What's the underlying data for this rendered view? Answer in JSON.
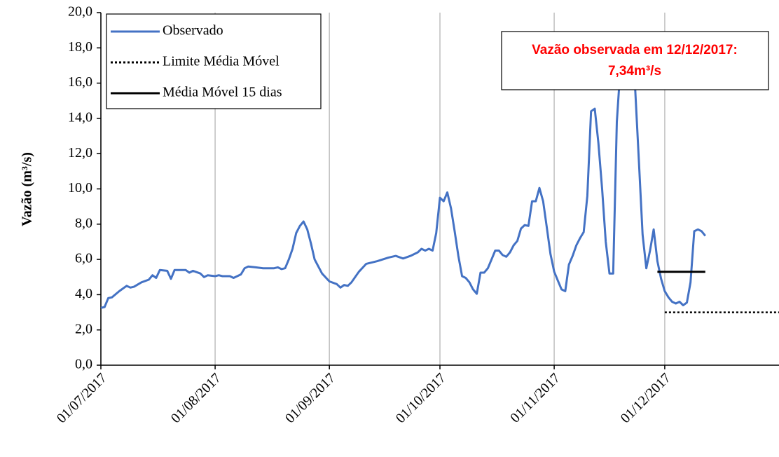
{
  "chart_data": {
    "type": "line",
    "y_label": "Vazão (m³/s)",
    "xlim": [
      "01/07/2017",
      "01/01/2018"
    ],
    "xticks": [
      "01/07/2017",
      "01/08/2017",
      "01/09/2017",
      "01/10/2017",
      "01/11/2017",
      "01/12/2017"
    ],
    "ylim": [
      0,
      20
    ],
    "yticks": [
      {
        "value": 0,
        "label": "0,0"
      },
      {
        "value": 2,
        "label": "2,0"
      },
      {
        "value": 4,
        "label": "4,0"
      },
      {
        "value": 6,
        "label": "6,0"
      },
      {
        "value": 8,
        "label": "8,0"
      },
      {
        "value": 10,
        "label": "10,0"
      },
      {
        "value": 12,
        "label": "12,0"
      },
      {
        "value": 14,
        "label": "14,0"
      },
      {
        "value": 16,
        "label": "16,0"
      },
      {
        "value": 18,
        "label": "18,0"
      },
      {
        "value": 20,
        "label": "20,0"
      }
    ],
    "grid": "x",
    "legend": "upper left",
    "annotation": {
      "lines": [
        "Vazão observada em 12/12/2017:",
        "7,34m³/s"
      ],
      "color": "#ff0000"
    },
    "series": [
      {
        "name": "Observado",
        "color": "#4472c4",
        "style": "solid",
        "x": [
          "01/07/2017",
          "02/07/2017",
          "03/07/2017",
          "04/07/2017",
          "06/07/2017",
          "08/07/2017",
          "09/07/2017",
          "10/07/2017",
          "12/07/2017",
          "14/07/2017",
          "15/07/2017",
          "16/07/2017",
          "17/07/2017",
          "19/07/2017",
          "20/07/2017",
          "21/07/2017",
          "24/07/2017",
          "25/07/2017",
          "26/07/2017",
          "28/07/2017",
          "29/07/2017",
          "30/07/2017",
          "01/08/2017",
          "02/08/2017",
          "03/08/2017",
          "05/08/2017",
          "06/08/2017",
          "08/08/2017",
          "09/08/2017",
          "10/08/2017",
          "12/08/2017",
          "14/08/2017",
          "17/08/2017",
          "18/08/2017",
          "19/08/2017",
          "20/08/2017",
          "21/08/2017",
          "22/08/2017",
          "23/08/2017",
          "24/08/2017",
          "25/08/2017",
          "26/08/2017",
          "27/08/2017",
          "28/08/2017",
          "30/08/2017",
          "01/09/2017",
          "03/09/2017",
          "04/09/2017",
          "05/09/2017",
          "06/09/2017",
          "07/09/2017",
          "09/09/2017",
          "11/09/2017",
          "14/09/2017",
          "17/09/2017",
          "19/09/2017",
          "21/09/2017",
          "23/09/2017",
          "25/09/2017",
          "26/09/2017",
          "27/09/2017",
          "28/09/2017",
          "29/09/2017",
          "30/09/2017",
          "01/10/2017",
          "02/10/2017",
          "03/10/2017",
          "04/10/2017",
          "05/10/2017",
          "06/10/2017",
          "07/10/2017",
          "08/10/2017",
          "09/10/2017",
          "10/10/2017",
          "11/10/2017",
          "12/10/2017",
          "13/10/2017",
          "14/10/2017",
          "15/10/2017",
          "16/10/2017",
          "17/10/2017",
          "18/10/2017",
          "19/10/2017",
          "20/10/2017",
          "21/10/2017",
          "22/10/2017",
          "23/10/2017",
          "24/10/2017",
          "25/10/2017",
          "26/10/2017",
          "27/10/2017",
          "28/10/2017",
          "29/10/2017",
          "30/10/2017",
          "31/10/2017",
          "01/11/2017",
          "02/11/2017",
          "03/11/2017",
          "04/11/2017",
          "05/11/2017",
          "06/11/2017",
          "07/11/2017",
          "08/11/2017",
          "09/11/2017",
          "10/11/2017",
          "11/11/2017",
          "12/11/2017",
          "13/11/2017",
          "14/11/2017",
          "15/11/2017",
          "16/11/2017",
          "17/11/2017",
          "18/11/2017",
          "19/11/2017",
          "20/11/2017",
          "21/11/2017",
          "22/11/2017",
          "23/11/2017",
          "24/11/2017",
          "25/11/2017",
          "26/11/2017",
          "27/11/2017",
          "28/11/2017",
          "29/11/2017",
          "30/11/2017",
          "01/12/2017",
          "02/12/2017",
          "03/12/2017",
          "04/12/2017",
          "05/12/2017",
          "06/12/2017",
          "07/12/2017",
          "08/12/2017",
          "09/12/2017",
          "10/12/2017",
          "11/12/2017",
          "12/12/2017"
        ],
        "values": [
          3.25,
          3.3,
          3.8,
          3.85,
          4.2,
          4.5,
          4.4,
          4.45,
          4.7,
          4.85,
          5.1,
          4.95,
          5.4,
          5.35,
          4.9,
          5.4,
          5.4,
          5.25,
          5.35,
          5.2,
          5.0,
          5.1,
          5.05,
          5.1,
          5.05,
          5.05,
          4.95,
          5.15,
          5.5,
          5.6,
          5.55,
          5.5,
          5.5,
          5.55,
          5.45,
          5.5,
          6.0,
          6.6,
          7.5,
          7.9,
          8.15,
          7.7,
          6.9,
          6.0,
          5.2,
          4.75,
          4.6,
          4.4,
          4.55,
          4.5,
          4.7,
          5.3,
          5.75,
          5.9,
          6.1,
          6.2,
          6.05,
          6.2,
          6.4,
          6.6,
          6.5,
          6.6,
          6.5,
          7.5,
          9.5,
          9.3,
          9.8,
          8.9,
          7.6,
          6.2,
          5.05,
          4.95,
          4.7,
          4.3,
          4.05,
          5.25,
          5.25,
          5.5,
          6.0,
          6.5,
          6.5,
          6.25,
          6.15,
          6.4,
          6.8,
          7.05,
          7.75,
          7.95,
          7.9,
          9.3,
          9.3,
          10.05,
          9.3,
          7.8,
          6.3,
          5.3,
          4.8,
          4.3,
          4.2,
          5.7,
          6.2,
          6.8,
          7.2,
          7.55,
          9.6,
          14.4,
          14.55,
          12.6,
          10.0,
          7.0,
          5.2,
          5.2,
          13.8,
          17.0,
          17.5,
          17.0,
          16.5,
          15.6,
          11.5,
          7.4,
          5.5,
          6.5,
          7.7,
          5.9,
          4.9,
          4.2,
          3.85,
          3.6,
          3.5,
          3.6,
          3.4,
          3.55,
          4.7,
          7.6,
          7.7,
          7.6,
          7.34
        ]
      },
      {
        "name": "Limite Média Móvel",
        "color": "#000000",
        "style": "dotted",
        "x": [
          "01/12/2017",
          "01/01/2018"
        ],
        "values": [
          3.0,
          3.0
        ]
      },
      {
        "name": "Média Móvel 15 dias",
        "color": "#000000",
        "style": "solid",
        "x": [
          "29/11/2017",
          "12/12/2017"
        ],
        "values": [
          5.3,
          5.3
        ]
      }
    ]
  }
}
